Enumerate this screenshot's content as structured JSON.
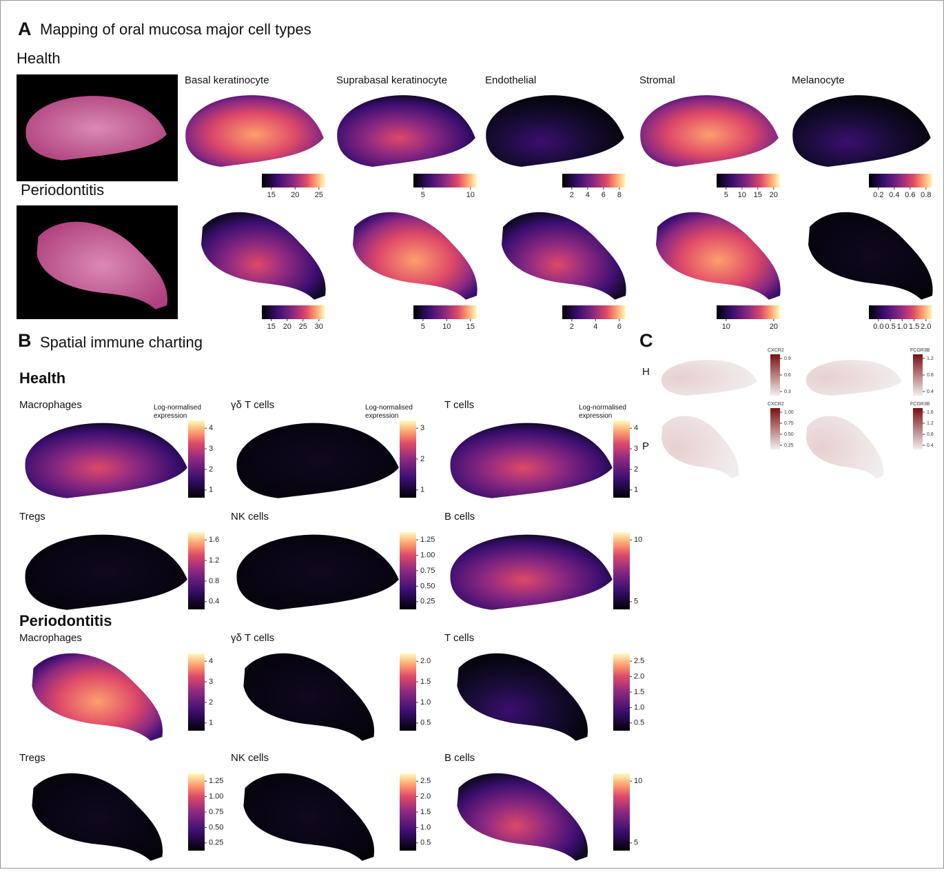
{
  "panel_a": {
    "letter": "A",
    "title": "Mapping of oral mucosa major cell types",
    "rows": [
      {
        "condition": "Health",
        "panels": [
          {
            "name": "Basal keratinocyte",
            "ticks": [
              "15",
              "20",
              "25"
            ]
          },
          {
            "name": "Suprabasal keratinocyte",
            "ticks": [
              "5",
              "10"
            ]
          },
          {
            "name": "Endothelial",
            "ticks": [
              "2",
              "4",
              "6",
              "8"
            ]
          },
          {
            "name": "Stromal",
            "ticks": [
              "5",
              "10",
              "15",
              "20"
            ]
          },
          {
            "name": "Melanocyte",
            "ticks": [
              "0.2",
              "0.4",
              "0.6",
              "0.8"
            ]
          }
        ]
      },
      {
        "condition": "Periodontitis",
        "panels": [
          {
            "ticks": [
              "15",
              "20",
              "25",
              "30"
            ]
          },
          {
            "ticks": [
              "5",
              "10",
              "15"
            ]
          },
          {
            "ticks": [
              "2",
              "4",
              "6"
            ]
          },
          {
            "ticks": [
              "10",
              "20"
            ]
          },
          {
            "ticks": [
              "0.0",
              "0.5",
              "1.0",
              "1.5",
              "2.0"
            ]
          }
        ]
      }
    ]
  },
  "panel_b": {
    "letter": "B",
    "title": "Spatial immune charting",
    "legend_title": "Log-normalised expression",
    "sections": [
      {
        "condition": "Health",
        "panels": [
          {
            "name": "Macrophages",
            "ticks": [
              "1",
              "2",
              "3",
              "4"
            ]
          },
          {
            "name": "γδ T cells",
            "ticks": [
              "1",
              "2",
              "3"
            ]
          },
          {
            "name": "T cells",
            "ticks": [
              "1",
              "2",
              "3",
              "4"
            ]
          },
          {
            "name": "Tregs",
            "ticks": [
              "0.4",
              "0.8",
              "1.2",
              "1.6"
            ]
          },
          {
            "name": "NK cells",
            "ticks": [
              "0.25",
              "0.50",
              "0.75",
              "1.00",
              "1.25"
            ]
          },
          {
            "name": "B cells",
            "ticks": [
              "5",
              "10"
            ]
          }
        ]
      },
      {
        "condition": "Periodontitis",
        "panels": [
          {
            "name": "Macrophages",
            "ticks": [
              "1",
              "2",
              "3",
              "4"
            ]
          },
          {
            "name": "γδ T cells",
            "ticks": [
              "0.5",
              "1.0",
              "1.5",
              "2.0"
            ]
          },
          {
            "name": "T cells",
            "ticks": [
              "0.5",
              "1.0",
              "1.5",
              "2.0",
              "2.5"
            ]
          },
          {
            "name": "Tregs",
            "ticks": [
              "0.25",
              "0.50",
              "0.75",
              "1.00",
              "1.25"
            ]
          },
          {
            "name": "NK cells",
            "ticks": [
              "0.5",
              "1.0",
              "1.5",
              "2.0",
              "2.5"
            ]
          },
          {
            "name": "B cells",
            "ticks": [
              "5",
              "10"
            ]
          }
        ]
      }
    ]
  },
  "panel_c": {
    "letter": "C",
    "rows": [
      {
        "label": "H",
        "panels": [
          {
            "gene": "CXCR2",
            "ticks": [
              "0.3",
              "0.6",
              "0.9"
            ]
          },
          {
            "gene": "FCGR3B",
            "ticks": [
              "0.4",
              "0.8",
              "1.2"
            ]
          }
        ]
      },
      {
        "label": "P",
        "panels": [
          {
            "gene": "CXCR2",
            "ticks": [
              "0.25",
              "0.50",
              "0.75",
              "1.00"
            ]
          },
          {
            "gene": "FCGR3B",
            "ticks": [
              "0.4",
              "0.8",
              "1.2",
              "1.6"
            ]
          }
        ]
      }
    ]
  }
}
